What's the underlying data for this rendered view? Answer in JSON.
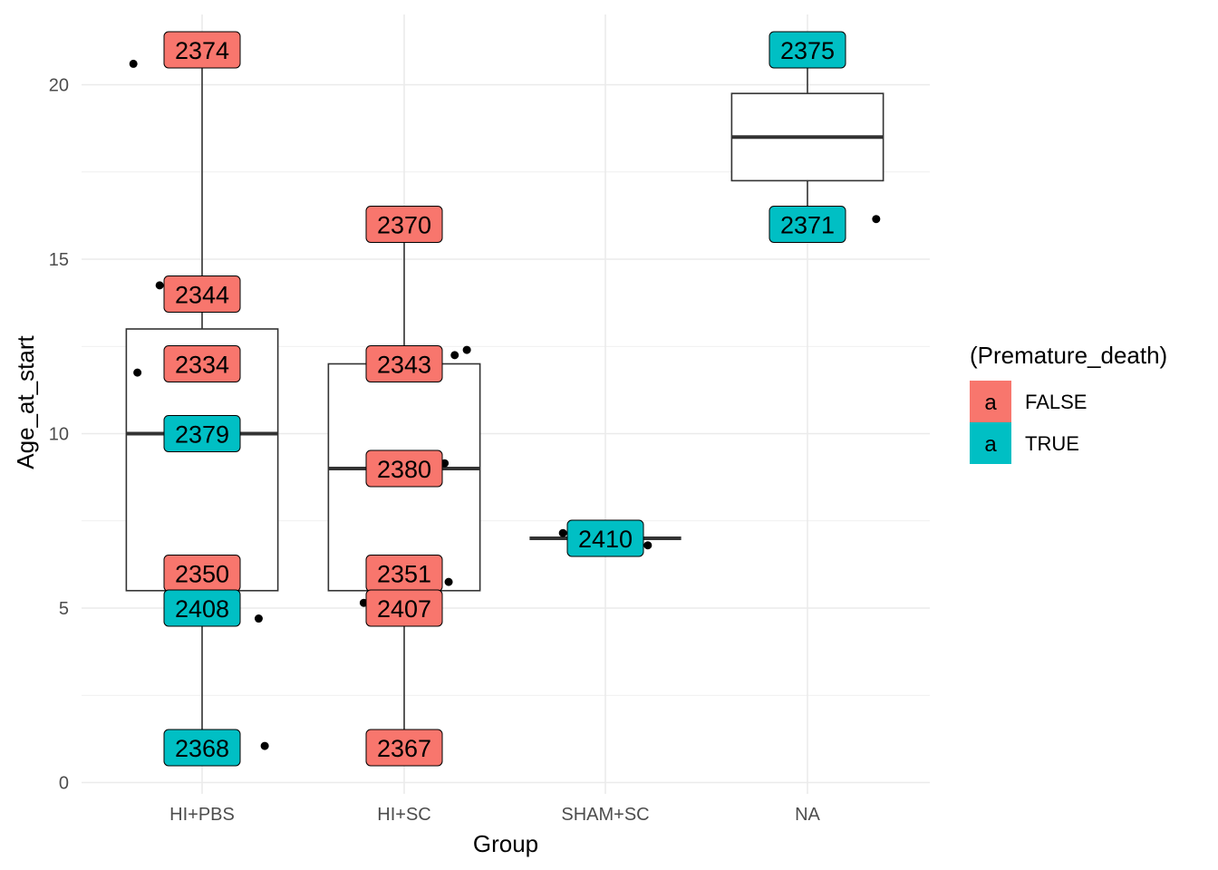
{
  "chart_data": {
    "type": "boxplot",
    "xlabel": "Group",
    "ylabel": "Age_at_start",
    "ylim": [
      0,
      21.6
    ],
    "yticks": [
      0,
      5,
      10,
      15,
      20
    ],
    "grid": true,
    "legend_position": "right",
    "legend": {
      "title": "(Premature_death)",
      "key_glyph": "a",
      "entries": [
        {
          "label": "FALSE",
          "color": "#F8766D"
        },
        {
          "label": "TRUE",
          "color": "#00BFC4"
        }
      ]
    },
    "categories": [
      "HI+PBS",
      "HI+SC",
      "SHAM+SC",
      "NA"
    ],
    "boxes": [
      {
        "category": "HI+PBS",
        "min": 1.0,
        "q1": 5.5,
        "median": 10.0,
        "q3": 13.0,
        "max": 21.0
      },
      {
        "category": "HI+SC",
        "min": 1.0,
        "q1": 5.5,
        "median": 9.0,
        "q3": 12.0,
        "max": 16.0
      },
      {
        "category": "SHAM+SC",
        "min": 7.0,
        "q1": 7.0,
        "median": 7.0,
        "q3": 7.0,
        "max": 7.0
      },
      {
        "category": "NA",
        "min": 16.0,
        "q1": 17.25,
        "median": 18.5,
        "q3": 19.75,
        "max": 21.0
      }
    ],
    "labels": [
      {
        "category": "HI+PBS",
        "y": 21.0,
        "text": "2374",
        "premature_death": "FALSE"
      },
      {
        "category": "HI+PBS",
        "y": 14.0,
        "text": "2344",
        "premature_death": "FALSE"
      },
      {
        "category": "HI+PBS",
        "y": 12.0,
        "text": "2334",
        "premature_death": "FALSE"
      },
      {
        "category": "HI+PBS",
        "y": 10.0,
        "text": "2379",
        "premature_death": "TRUE"
      },
      {
        "category": "HI+PBS",
        "y": 6.0,
        "text": "2350",
        "premature_death": "FALSE"
      },
      {
        "category": "HI+PBS",
        "y": 5.0,
        "text": "2408",
        "premature_death": "TRUE"
      },
      {
        "category": "HI+PBS",
        "y": 1.0,
        "text": "2368",
        "premature_death": "TRUE"
      },
      {
        "category": "HI+SC",
        "y": 16.0,
        "text": "2370",
        "premature_death": "FALSE"
      },
      {
        "category": "HI+SC",
        "y": 12.0,
        "text": "2343",
        "premature_death": "FALSE"
      },
      {
        "category": "HI+SC",
        "y": 9.0,
        "text": "2380",
        "premature_death": "FALSE"
      },
      {
        "category": "HI+SC",
        "y": 6.0,
        "text": "2351",
        "premature_death": "FALSE"
      },
      {
        "category": "HI+SC",
        "y": 5.0,
        "text": "2407",
        "premature_death": "FALSE"
      },
      {
        "category": "HI+SC",
        "y": 1.0,
        "text": "2367",
        "premature_death": "FALSE"
      },
      {
        "category": "SHAM+SC",
        "y": 7.0,
        "text": "2410",
        "premature_death": "TRUE"
      },
      {
        "category": "NA",
        "y": 21.0,
        "text": "2375",
        "premature_death": "TRUE"
      },
      {
        "category": "NA",
        "y": 16.0,
        "text": "2371",
        "premature_death": "TRUE"
      }
    ],
    "jitter_points": [
      {
        "category": "HI+PBS",
        "dx": -0.34,
        "y": 20.6
      },
      {
        "category": "HI+PBS",
        "dx": -0.21,
        "y": 14.25
      },
      {
        "category": "HI+PBS",
        "dx": -0.32,
        "y": 11.75
      },
      {
        "category": "HI+PBS",
        "dx": 0.28,
        "y": 4.7
      },
      {
        "category": "HI+PBS",
        "dx": 0.31,
        "y": 1.05
      },
      {
        "category": "HI+SC",
        "dx": 0.25,
        "y": 12.25
      },
      {
        "category": "HI+SC",
        "dx": 0.31,
        "y": 12.4
      },
      {
        "category": "HI+SC",
        "dx": 0.2,
        "y": 9.15
      },
      {
        "category": "HI+SC",
        "dx": 0.22,
        "y": 5.75
      },
      {
        "category": "HI+SC",
        "dx": -0.2,
        "y": 5.15
      },
      {
        "category": "SHAM+SC",
        "dx": -0.21,
        "y": 7.15
      },
      {
        "category": "SHAM+SC",
        "dx": 0.21,
        "y": 6.8
      },
      {
        "category": "NA",
        "dx": 0.34,
        "y": 16.15
      }
    ]
  }
}
